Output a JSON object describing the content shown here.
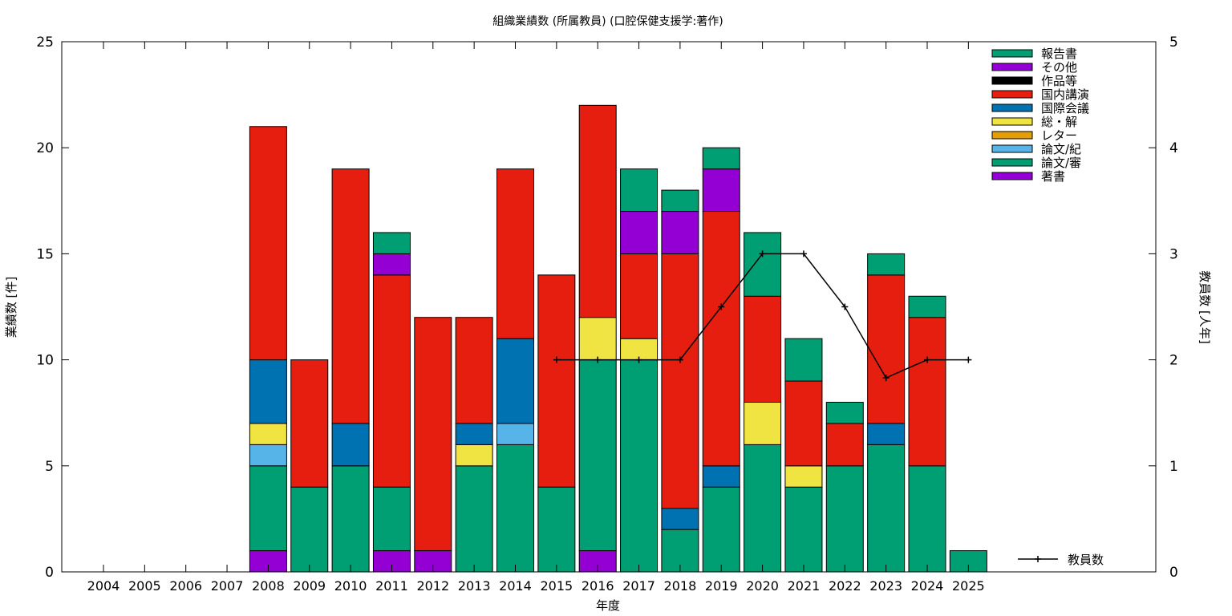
{
  "chart_data": {
    "type": "bar",
    "stacked": true,
    "title": "組織業績数 (所属教員) (口腔保健支援学:著作)",
    "xlabel": "年度",
    "ylabel": "業績数 [件]",
    "y2label": "教員数 [人年]",
    "ylim": [
      0,
      25
    ],
    "y2lim": [
      0,
      5
    ],
    "yticks": [
      0,
      5,
      10,
      15,
      20,
      25
    ],
    "y2ticks": [
      0,
      1,
      2,
      3,
      4,
      5
    ],
    "grid": false,
    "legend_position": "top-right",
    "categories": [
      "2004",
      "2005",
      "2006",
      "2007",
      "2008",
      "2009",
      "2010",
      "2011",
      "2012",
      "2013",
      "2014",
      "2015",
      "2016",
      "2017",
      "2018",
      "2019",
      "2020",
      "2021",
      "2022",
      "2023",
      "2024",
      "2025"
    ],
    "series": [
      {
        "name": "著書",
        "color": "#9400d3",
        "values": [
          0,
          0,
          0,
          0,
          1,
          0,
          0,
          1,
          1,
          0,
          0,
          0,
          1,
          0,
          0,
          0,
          0,
          0,
          0,
          0,
          0,
          0
        ]
      },
      {
        "name": "論文/審",
        "color": "#009e73",
        "values": [
          0,
          0,
          0,
          0,
          4,
          4,
          5,
          3,
          0,
          5,
          6,
          4,
          9,
          10,
          2,
          4,
          6,
          4,
          5,
          6,
          5,
          1
        ]
      },
      {
        "name": "論文/紀",
        "color": "#56b4e9",
        "values": [
          0,
          0,
          0,
          0,
          1,
          0,
          0,
          0,
          0,
          0,
          1,
          0,
          0,
          0,
          0,
          0,
          0,
          0,
          0,
          0,
          0,
          0
        ]
      },
      {
        "name": "レター",
        "color": "#e69f00",
        "values": [
          0,
          0,
          0,
          0,
          0,
          0,
          0,
          0,
          0,
          0,
          0,
          0,
          0,
          0,
          0,
          0,
          0,
          0,
          0,
          0,
          0,
          0
        ]
      },
      {
        "name": "総・解",
        "color": "#f0e442",
        "values": [
          0,
          0,
          0,
          0,
          1,
          0,
          0,
          0,
          0,
          1,
          0,
          0,
          2,
          1,
          0,
          0,
          2,
          1,
          0,
          0,
          0,
          0
        ]
      },
      {
        "name": "国際会議",
        "color": "#0072b2",
        "values": [
          0,
          0,
          0,
          0,
          3,
          0,
          2,
          0,
          0,
          1,
          4,
          0,
          0,
          0,
          1,
          1,
          0,
          0,
          0,
          1,
          0,
          0
        ]
      },
      {
        "name": "国内講演",
        "color": "#e51e10",
        "values": [
          0,
          0,
          0,
          0,
          11,
          6,
          12,
          10,
          11,
          5,
          8,
          10,
          10,
          4,
          12,
          12,
          5,
          4,
          2,
          7,
          7,
          0
        ]
      },
      {
        "name": "作品等",
        "color": "#000000",
        "values": [
          0,
          0,
          0,
          0,
          0,
          0,
          0,
          0,
          0,
          0,
          0,
          0,
          0,
          0,
          0,
          0,
          0,
          0,
          0,
          0,
          0,
          0
        ]
      },
      {
        "name": "その他",
        "color": "#9400d3",
        "values": [
          0,
          0,
          0,
          0,
          0,
          0,
          0,
          1,
          0,
          0,
          0,
          0,
          0,
          2,
          2,
          2,
          0,
          0,
          0,
          0,
          0,
          0
        ]
      },
      {
        "name": "報告書",
        "color": "#009e73",
        "values": [
          0,
          0,
          0,
          0,
          0,
          0,
          0,
          1,
          0,
          0,
          0,
          0,
          0,
          2,
          1,
          1,
          3,
          2,
          1,
          1,
          1,
          0
        ]
      }
    ],
    "line_series": {
      "name": "教員数",
      "axis": "y2",
      "color": "#000000",
      "x": [
        "2015",
        "2016",
        "2017",
        "2018",
        "2019",
        "2020",
        "2021",
        "2022",
        "2023",
        "2024",
        "2025"
      ],
      "values": [
        2,
        2,
        2,
        2,
        2.5,
        3,
        3,
        2.5,
        1.83,
        2,
        2
      ]
    }
  }
}
